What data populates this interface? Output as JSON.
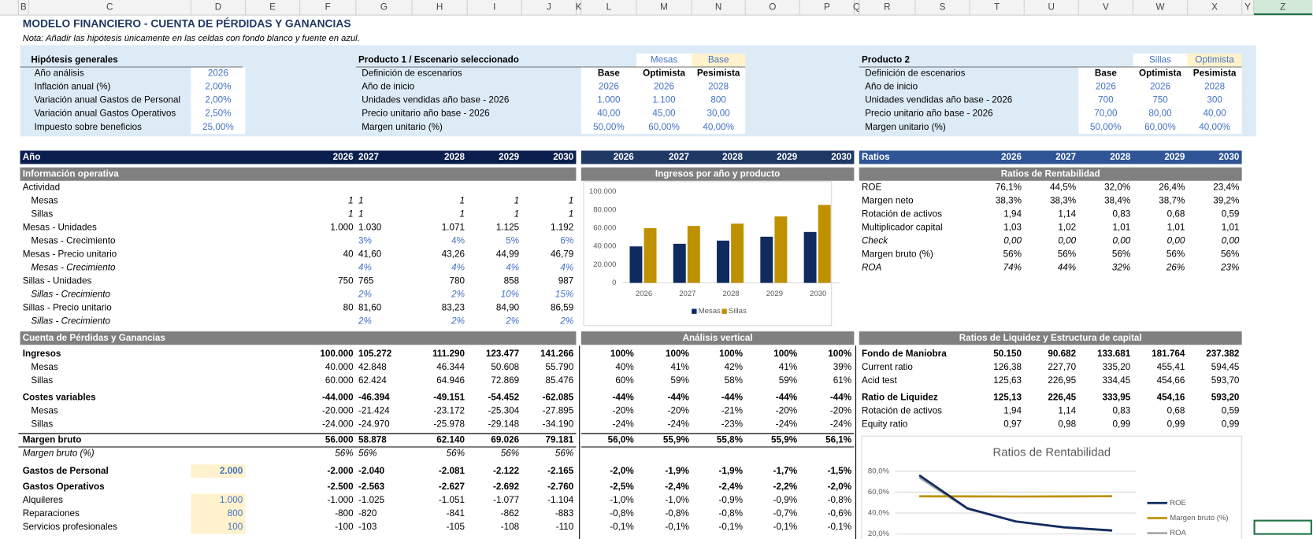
{
  "column_headers": [
    "B",
    "C",
    "D",
    "E",
    "F",
    "G",
    "H",
    "I",
    "J",
    "K",
    "L",
    "M",
    "N",
    "O",
    "P",
    "Q",
    "R",
    "S",
    "T",
    "U",
    "V",
    "W",
    "X",
    "Y",
    "Z"
  ],
  "grid": {
    "rows": [
      {
        "B": "MODELO FINANCIERO - CUENTA DE PÉRDIDAS Y GANANCIAS"
      },
      {
        "B": "Nota: Añadir las hipótesis únicamente en las celdas con fondo blanco y fuente en azul."
      },
      {
        "C": "Hipótesis generales",
        "G": "Producto 1 / Escenario seleccionado",
        "M": "Mesas",
        "N": "Base",
        "R": "Producto 2",
        "W": "Sillas",
        "X": "Optimista"
      },
      {
        "C": "Año análisis",
        "D": "2026",
        "G": "Definición de escenarios",
        "L": "Base",
        "M": "Optimista",
        "N": "Pesimista",
        "R": "Definición de escenarios",
        "V": "Base",
        "W": "Optimista",
        "X": "Pesimista"
      },
      {
        "C": "Inflación anual (%)",
        "D": "2,00%",
        "G": "Año de inicio",
        "L": "2026",
        "M": "2026",
        "N": "2028",
        "R": "Año de inicio",
        "V": "2026",
        "W": "2026",
        "X": "2028"
      },
      {
        "C": "Variación anual Gastos de Personal",
        "D": "2,00%",
        "G": "Unidades vendidas año base - 2026",
        "L": "1.000",
        "M": "1.100",
        "N": "800",
        "R": "Unidades vendidas año base - 2026",
        "V": "700",
        "W": "750",
        "X": "300"
      },
      {
        "C": "Variación anual Gastos Operativos",
        "D": "2,50%",
        "G": "Precio unitario año base - 2026",
        "L": "40,00",
        "M": "45,00",
        "N": "30,00",
        "R": "Precio unitario año base - 2026",
        "V": "70,00",
        "W": "80,00",
        "X": "40,00"
      },
      {
        "C": "Impuesto sobre beneficios",
        "D": "25,00%",
        "G": "Margen unitario (%)",
        "L": "50,00%",
        "M": "60,00%",
        "N": "40,00%",
        "R": "Margen unitario (%)",
        "V": "50,00%",
        "W": "60,00%",
        "X": "40,00%"
      },
      {
        "B": "Año",
        "F": "2026",
        "G": "2027",
        "H": "2028",
        "I": "2029",
        "J": "2030",
        "L": "2026",
        "M": "2027",
        "N": "2028",
        "O": "2029",
        "P": "2030",
        "R": "Ratios",
        "T": "2026",
        "U": "2027",
        "V": "2028",
        "W": "2029",
        "X": "2030"
      },
      {
        "B": "Información operativa",
        "L": "Ingresos por año y producto",
        "R": "Ratios de Rentabilidad"
      },
      {
        "B": "Actividad",
        "R": "ROE",
        "T": "76,1%",
        "U": "44,5%",
        "V": "32,0%",
        "W": "26,4%",
        "X": "23,4%"
      },
      {
        "C": "Mesas",
        "F": "1",
        "G": "1",
        "H": "1",
        "I": "1",
        "J": "1",
        "R": "Margen neto",
        "T": "38,3%",
        "U": "38,3%",
        "V": "38,4%",
        "W": "38,7%",
        "X": "39,2%"
      },
      {
        "C": "Sillas",
        "F": "1",
        "G": "1",
        "H": "1",
        "I": "1",
        "J": "1",
        "R": "Rotación de activos",
        "T": "1,94",
        "U": "1,14",
        "V": "0,83",
        "W": "0,68",
        "X": "0,59"
      },
      {
        "B": "Mesas - Unidades",
        "F": "1.000",
        "G": "1.030",
        "H": "1.071",
        "I": "1.125",
        "J": "1.192",
        "R": "Multiplicador capital",
        "T": "1,03",
        "U": "1,02",
        "V": "1,01",
        "W": "1,01",
        "X": "1,01"
      },
      {
        "C": "Mesas - Crecimiento",
        "G": "3%",
        "H": "4%",
        "I": "5%",
        "J": "6%",
        "R": "Check",
        "T": "0,00",
        "U": "0,00",
        "V": "0,00",
        "W": "0,00",
        "X": "0,00"
      },
      {
        "B": "Mesas - Precio unitario",
        "F": "40",
        "G": "41,60",
        "H": "43,26",
        "I": "44,99",
        "J": "46,79",
        "R": "Margen bruto (%)",
        "T": "56%",
        "U": "56%",
        "V": "56%",
        "W": "56%",
        "X": "56%"
      },
      {
        "C": "Mesas - Crecimiento",
        "G": "4%",
        "H": "4%",
        "I": "4%",
        "J": "4%",
        "R": "ROA",
        "T": "74%",
        "U": "44%",
        "V": "32%",
        "W": "26%",
        "X": "23%"
      },
      {
        "B": "Sillas - Unidades",
        "F": "750",
        "G": "765",
        "H": "780",
        "I": "858",
        "J": "987"
      },
      {
        "C": "Sillas - Crecimiento",
        "G": "2%",
        "H": "2%",
        "I": "10%",
        "J": "15%"
      },
      {
        "B": "Sillas - Precio unitario",
        "F": "80",
        "G": "81,60",
        "H": "83,23",
        "I": "84,90",
        "J": "86,59"
      },
      {
        "C": "Sillas - Crecimiento",
        "G": "2%",
        "H": "2%",
        "I": "2%",
        "J": "2%"
      },
      {
        "B": "Cuenta de Pérdidas y Ganancias",
        "L": "Análisis vertical",
        "R": "Ratios de Liquidez y Estructura de capital"
      },
      {
        "B": "Ingresos",
        "F": "100.000",
        "G": "105.272",
        "H": "111.290",
        "I": "123.477",
        "J": "141.266",
        "L": "100%",
        "M": "100%",
        "N": "100%",
        "O": "100%",
        "P": "100%",
        "R": "Fondo de Maniobra",
        "T": "50.150",
        "U": "90.682",
        "V": "133.681",
        "W": "181.764",
        "X": "237.382"
      },
      {
        "C": "Mesas",
        "F": "40.000",
        "G": "42.848",
        "H": "46.344",
        "I": "50.608",
        "J": "55.790",
        "L": "40%",
        "M": "41%",
        "N": "42%",
        "O": "41%",
        "P": "39%",
        "R": "Current ratio",
        "T": "126,38",
        "U": "227,70",
        "V": "335,20",
        "W": "455,41",
        "X": "594,45"
      },
      {
        "C": "Sillas",
        "F": "60.000",
        "G": "62.424",
        "H": "64.946",
        "I": "72.869",
        "J": "85.476",
        "L": "60%",
        "M": "59%",
        "N": "58%",
        "O": "59%",
        "P": "61%",
        "R": "Acid test",
        "T": "125,63",
        "U": "226,95",
        "V": "334,45",
        "W": "454,66",
        "X": "593,70"
      },
      {
        "B": "Costes variables",
        "F": "-44.000",
        "G": "-46.394",
        "H": "-49.151",
        "I": "-54.452",
        "J": "-62.085",
        "L": "-44%",
        "M": "-44%",
        "N": "-44%",
        "O": "-44%",
        "P": "-44%",
        "R": "Ratio de Liquidez",
        "T": "125,13",
        "U": "226,45",
        "V": "333,95",
        "W": "454,16",
        "X": "593,20"
      },
      {
        "C": "Mesas",
        "F": "-20.000",
        "G": "-21.424",
        "H": "-23.172",
        "I": "-25.304",
        "J": "-27.895",
        "L": "-20%",
        "M": "-20%",
        "N": "-21%",
        "O": "-20%",
        "P": "-20%",
        "R": "Rotación de activos",
        "T": "1,94",
        "U": "1,14",
        "V": "0,83",
        "W": "0,68",
        "X": "0,59"
      },
      {
        "C": "Sillas",
        "F": "-24.000",
        "G": "-24.970",
        "H": "-25.978",
        "I": "-29.148",
        "J": "-34.190",
        "L": "-24%",
        "M": "-24%",
        "N": "-23%",
        "O": "-24%",
        "P": "-24%",
        "R": "Equity ratio",
        "T": "0,97",
        "U": "0,98",
        "V": "0,99",
        "W": "0,99",
        "X": "0,99"
      },
      {
        "B": "Margen bruto",
        "F": "56.000",
        "G": "58.878",
        "H": "62.140",
        "I": "69.026",
        "J": "79.181",
        "L": "56,0%",
        "M": "55,9%",
        "N": "55,8%",
        "O": "55,9%",
        "P": "56,1%"
      },
      {
        "B": "Margen bruto (%)",
        "F": "56%",
        "G": "56%",
        "H": "56%",
        "I": "56%",
        "J": "56%"
      },
      {
        "B": "Gastos de Personal",
        "D": "2.000",
        "F": "-2.000",
        "G": "-2.040",
        "H": "-2.081",
        "I": "-2.122",
        "J": "-2.165",
        "L": "-2,0%",
        "M": "-1,9%",
        "N": "-1,9%",
        "O": "-1,7%",
        "P": "-1,5%"
      },
      {
        "B": "Gastos Operativos",
        "F": "-2.500",
        "G": "-2.563",
        "H": "-2.627",
        "I": "-2.692",
        "J": "-2.760",
        "L": "-2,5%",
        "M": "-2,4%",
        "N": "-2,4%",
        "O": "-2,2%",
        "P": "-2,0%"
      },
      {
        "B": "Alquileres",
        "D": "1.000",
        "F": "-1.000",
        "G": "-1.025",
        "H": "-1.051",
        "I": "-1.077",
        "J": "-1.104",
        "L": "-1,0%",
        "M": "-1,0%",
        "N": "-0,9%",
        "O": "-0,9%",
        "P": "-0,8%"
      },
      {
        "B": "Reparaciones",
        "D": "800",
        "F": "-800",
        "G": "-820",
        "H": "-841",
        "I": "-862",
        "J": "-883",
        "L": "-0,8%",
        "M": "-0,8%",
        "N": "-0,8%",
        "O": "-0,7%",
        "P": "-0,6%"
      },
      {
        "B": "Servicios profesionales",
        "D": "100",
        "F": "-100",
        "G": "-103",
        "H": "-105",
        "I": "-108",
        "J": "-110",
        "L": "-0,1%",
        "M": "-0,1%",
        "N": "-0,1%",
        "O": "-0,1%",
        "P": "-0,1%"
      }
    ]
  },
  "charts": [
    {
      "type": "bar",
      "categories": [
        "2026",
        "2027",
        "2028",
        "2029",
        "2030"
      ],
      "series": [
        {
          "name": "Mesas",
          "color": "#0e2a5e",
          "values": [
            40000,
            42848,
            46344,
            50608,
            55790
          ]
        },
        {
          "name": "Sillas",
          "color": "#bf9000",
          "values": [
            60000,
            62424,
            64946,
            72869,
            85476
          ]
        }
      ],
      "ylim": [
        0,
        100000
      ],
      "yticks": [
        0,
        {
          "value": 20000,
          "label": "20.000"
        },
        {
          "value": 40000,
          "label": "40.000"
        },
        {
          "value": 60000,
          "label": "60.000"
        },
        {
          "value": 80000,
          "label": "80.000"
        },
        {
          "value": 100000,
          "label": "100.000"
        }
      ],
      "legend": "bottom"
    },
    {
      "type": "line",
      "title": "Ratios de Rentabilidad",
      "series": [
        {
          "name": "ROE",
          "color": "#0e2a5e",
          "values": [
            76.1,
            44.5,
            32.0,
            26.4,
            23.4
          ]
        },
        {
          "name": "Margen bruto (%)",
          "color": "#bf9000",
          "values": [
            56.0,
            55.9,
            55.8,
            55.9,
            56.1
          ]
        },
        {
          "name": "ROA",
          "color": "#a5a5a5",
          "values": [
            74,
            44,
            32,
            26,
            23
          ]
        }
      ],
      "ylim": [
        0,
        80
      ],
      "yticks": [
        {
          "value": 20,
          "label": "20,0%"
        },
        {
          "value": 40,
          "label": "40,0%"
        },
        {
          "value": 60,
          "label": "60,0%"
        },
        {
          "value": 80,
          "label": "80,0%"
        }
      ],
      "grid": true,
      "legend": "right"
    }
  ]
}
